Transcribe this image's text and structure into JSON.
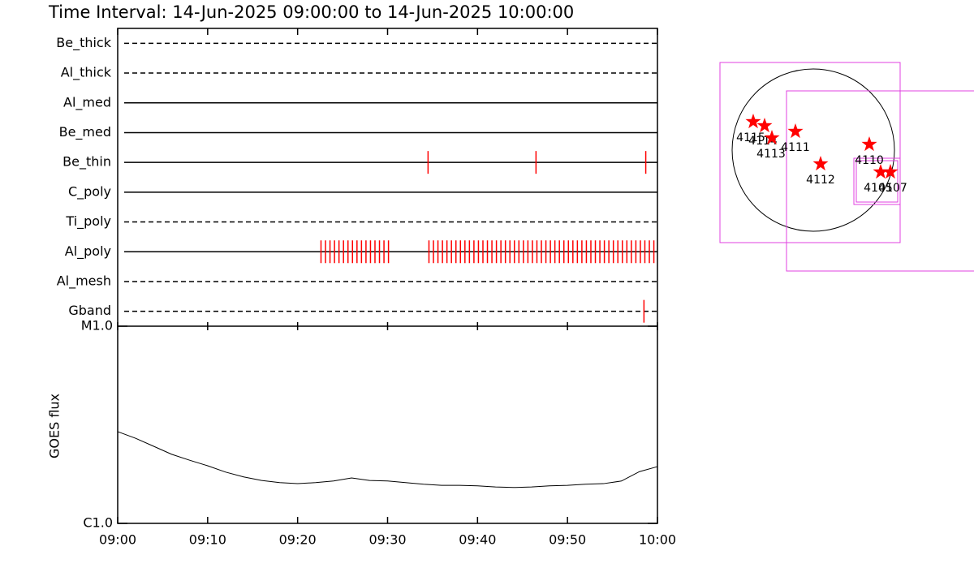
{
  "chart_data": {
    "type": "timeline",
    "title": "Time Interval: 14-Jun-2025 09:00:00 to 14-Jun-2025 10:00:00",
    "xlim": [
      0,
      60
    ],
    "xticks": [
      {
        "value": 0,
        "label": "09:00"
      },
      {
        "value": 10,
        "label": "09:10"
      },
      {
        "value": 20,
        "label": "09:20"
      },
      {
        "value": 30,
        "label": "09:30"
      },
      {
        "value": 40,
        "label": "09:40"
      },
      {
        "value": 50,
        "label": "09:50"
      },
      {
        "value": 60,
        "label": "10:00"
      }
    ],
    "event_color": "#ff0000",
    "filters": [
      {
        "name": "Be_thick",
        "line_style": "dashed",
        "times": []
      },
      {
        "name": "Al_thick",
        "line_style": "dashed",
        "times": []
      },
      {
        "name": "Al_med",
        "line_style": "solid",
        "times": []
      },
      {
        "name": "Be_med",
        "line_style": "solid",
        "times": []
      },
      {
        "name": "Be_thin",
        "line_style": "solid",
        "times": [
          34.5,
          46.5,
          58.7
        ]
      },
      {
        "name": "C_poly",
        "line_style": "solid",
        "times": []
      },
      {
        "name": "Ti_poly",
        "line_style": "dashed",
        "times": []
      },
      {
        "name": "Al_poly",
        "line_style": "solid",
        "times": [
          22.6,
          23.1,
          23.6,
          24.1,
          24.6,
          25.1,
          25.6,
          26.1,
          26.6,
          27.1,
          27.6,
          28.1,
          28.6,
          29.1,
          29.6,
          30.1,
          34.6,
          35.1,
          35.6,
          36.1,
          36.6,
          37.1,
          37.6,
          38.1,
          38.6,
          39.1,
          39.6,
          40.1,
          40.6,
          41.1,
          41.6,
          42.1,
          42.6,
          43.1,
          43.6,
          44.1,
          44.6,
          45.1,
          45.6,
          46.1,
          46.6,
          47.1,
          47.6,
          48.1,
          48.6,
          49.1,
          49.6,
          50.1,
          50.6,
          51.1,
          51.6,
          52.1,
          52.6,
          53.1,
          53.6,
          54.1,
          54.6,
          55.1,
          55.6,
          56.1,
          56.6,
          57.1,
          57.6,
          58.1,
          58.6,
          59.1,
          59.6
        ]
      },
      {
        "name": "Al_mesh",
        "line_style": "dashed",
        "times": []
      },
      {
        "name": "Gband",
        "line_style": "dashed",
        "times": [
          58.5
        ]
      }
    ],
    "goes": {
      "ylabel": "GOES flux",
      "log_scale": true,
      "color": "#000000",
      "ylim": [
        1e-06,
        1e-05
      ],
      "yticks": [
        {
          "value": 1e-06,
          "label": "C1.0"
        },
        {
          "value": 1e-05,
          "label": "M1.0"
        }
      ],
      "x": [
        0,
        2,
        4,
        6,
        8,
        10,
        12,
        14,
        16,
        18,
        20,
        22,
        24,
        26,
        28,
        30,
        32,
        34,
        36,
        38,
        40,
        42,
        44,
        46,
        48,
        50,
        52,
        54,
        56,
        58,
        60
      ],
      "values": [
        2.92e-06,
        2.7e-06,
        2.46e-06,
        2.24e-06,
        2.09e-06,
        1.96e-06,
        1.82e-06,
        1.72e-06,
        1.65e-06,
        1.61e-06,
        1.59e-06,
        1.61e-06,
        1.64e-06,
        1.7e-06,
        1.65e-06,
        1.64e-06,
        1.61e-06,
        1.58e-06,
        1.56e-06,
        1.56e-06,
        1.55e-06,
        1.53e-06,
        1.52e-06,
        1.53e-06,
        1.55e-06,
        1.56e-06,
        1.58e-06,
        1.59e-06,
        1.64e-06,
        1.83e-06,
        1.94e-06
      ]
    },
    "regions": [
      "4115",
      "4114",
      "4113",
      "4111",
      "4112",
      "4110",
      "4105",
      "4107"
    ]
  }
}
